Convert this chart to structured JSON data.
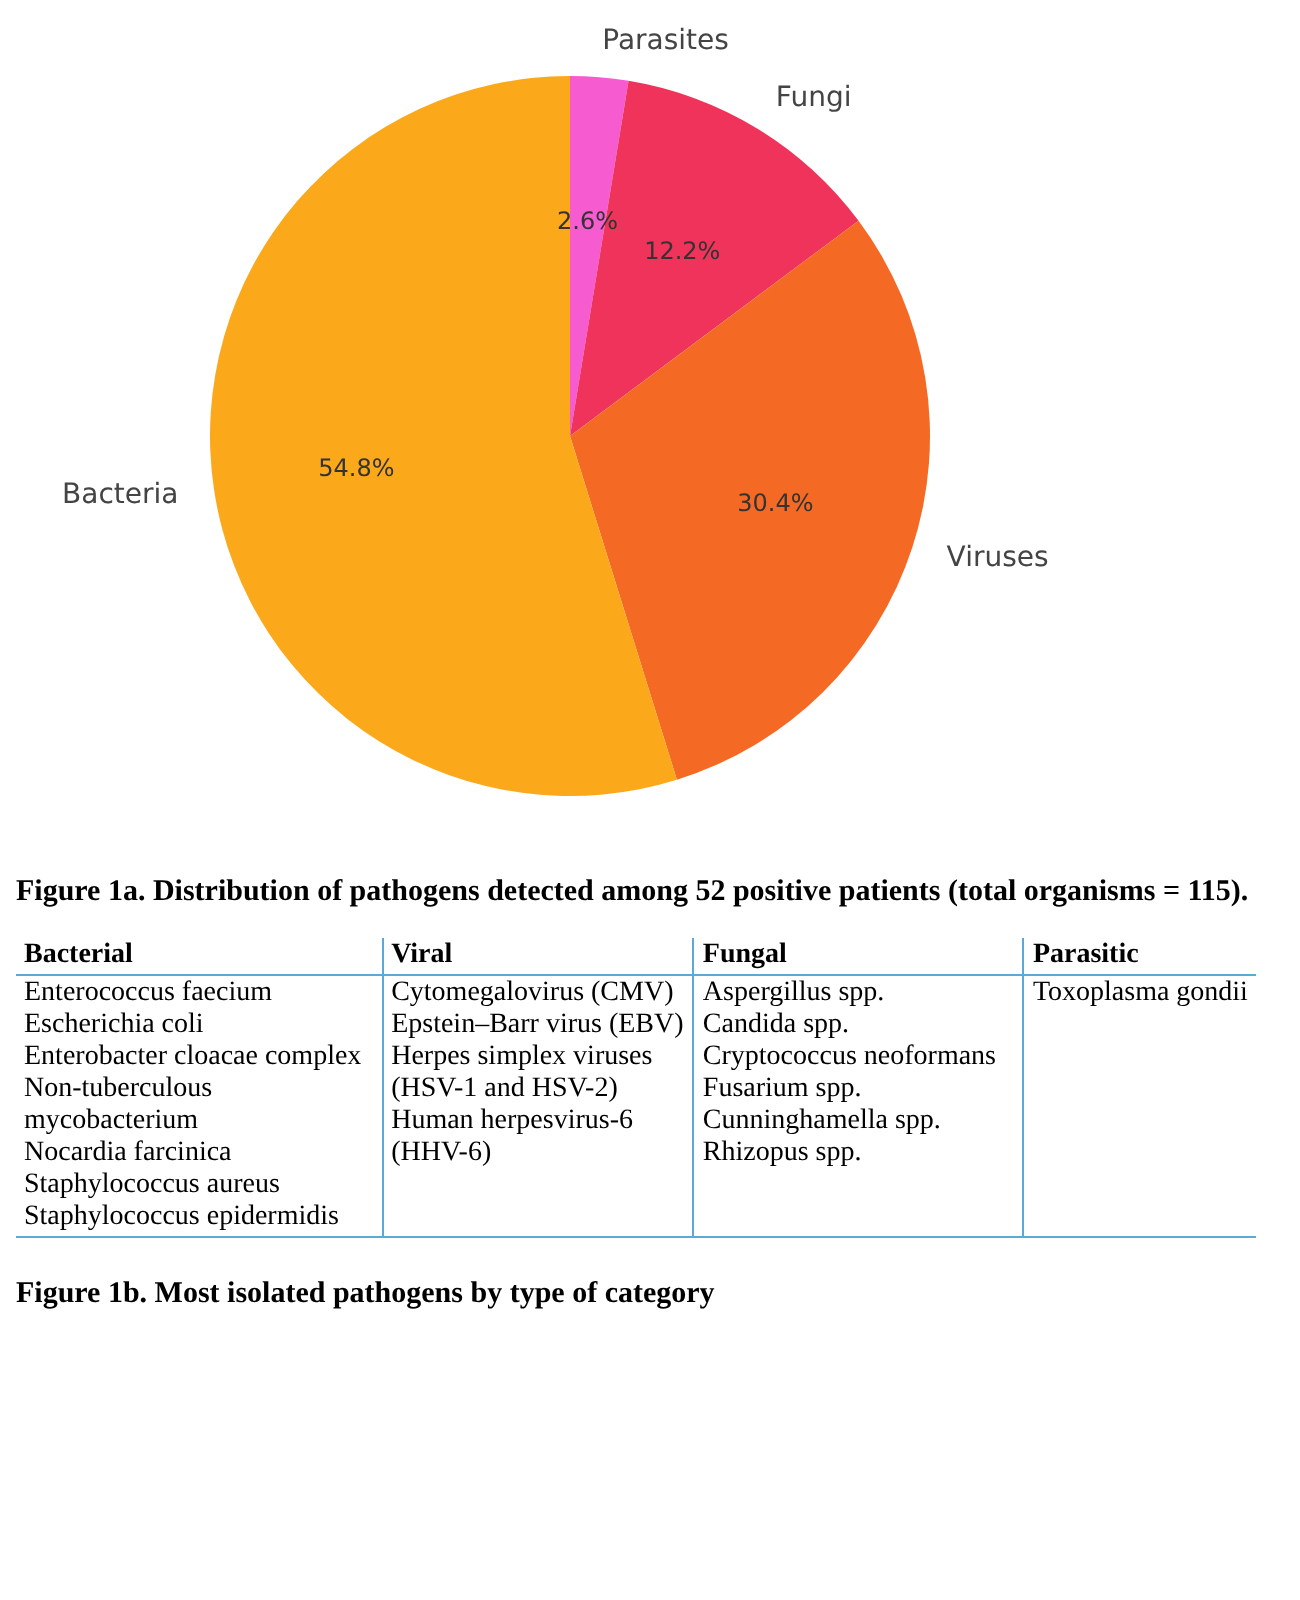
{
  "chart_data": [
    {
      "type": "pie",
      "categories": [
        "Parasites",
        "Fungi",
        "Viruses",
        "Bacteria"
      ],
      "values": [
        2.6,
        12.2,
        30.4,
        54.8
      ],
      "colors": [
        "#f75bd0",
        "#f0335a",
        "#f46a25",
        "#fba91a"
      ],
      "value_labels": [
        "2.6%",
        "12.2%",
        "30.4%",
        "54.8%"
      ],
      "legend": false,
      "annotations": [
        "Figure 1a. Distribution of pathogens detected among 52 positive patients (total organisms = 115)."
      ]
    },
    {
      "type": "other",
      "categories": [
        "Bacterial",
        "Viral",
        "Fungal",
        "Parasitic"
      ],
      "cell_labels": [
        [
          [
            "Enterococcus faecium",
            "Escherichia coli",
            "Enterobacter cloacae complex",
            "Non-tuberculous mycobacterium",
            "Nocardia farcinica",
            "Staphylococcus aureus",
            "Staphylococcus epidermidis"
          ],
          [
            "Cytomegalovirus (CMV)",
            "Epstein–Barr virus (EBV)",
            "Herpes simplex viruses (HSV-1 and HSV-2)",
            "Human herpesvirus-6 (HHV-6)"
          ],
          [
            "Aspergillus spp.",
            "Candida spp.",
            "Cryptococcus neoformans",
            "Fusarium spp.",
            "Cunninghamella spp.",
            "Rhizopus spp."
          ],
          [
            "Toxoplasma gondii"
          ]
        ]
      ],
      "annotations": [
        "Figure 1b. Most isolated pathogens by type of category"
      ]
    }
  ]
}
